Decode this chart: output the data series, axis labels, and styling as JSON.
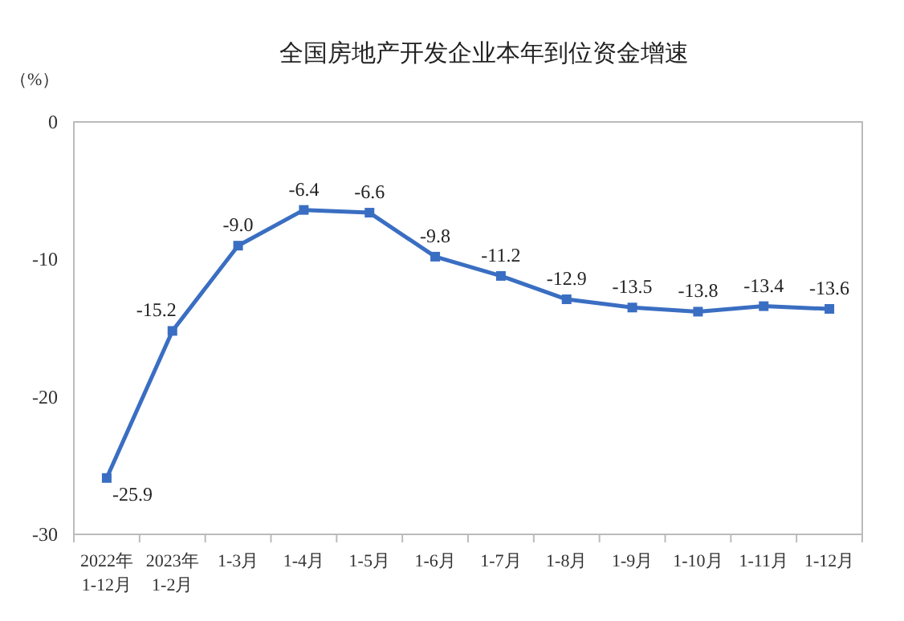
{
  "chart_data": {
    "type": "line",
    "title": "全国房地产开发企业本年到位资金增速",
    "ylabel": "（%）",
    "categories": [
      "2022年\n1-12月",
      "2023年\n1-2月",
      "1-3月",
      "1-4月",
      "1-5月",
      "1-6月",
      "1-7月",
      "1-8月",
      "1-9月",
      "1-10月",
      "1-11月",
      "1-12月"
    ],
    "series": [
      {
        "color": "#3a6ec2",
        "values": [
          -25.9,
          -15.2,
          -9.0,
          -6.4,
          -6.6,
          -9.8,
          -11.2,
          -12.9,
          -13.5,
          -13.8,
          -13.4,
          -13.6
        ]
      }
    ],
    "value_labels": [
      "-25.9",
      "-15.2",
      "-9.0",
      "-6.4",
      "-6.6",
      "-9.8",
      "-11.2",
      "-12.9",
      "-13.5",
      "-13.8",
      "-13.4",
      "-13.6"
    ],
    "ylim": [
      -30,
      0
    ],
    "yticks": [
      -30,
      -20,
      -10,
      0
    ],
    "grid": false,
    "marker": "square",
    "line_style": "solid"
  }
}
